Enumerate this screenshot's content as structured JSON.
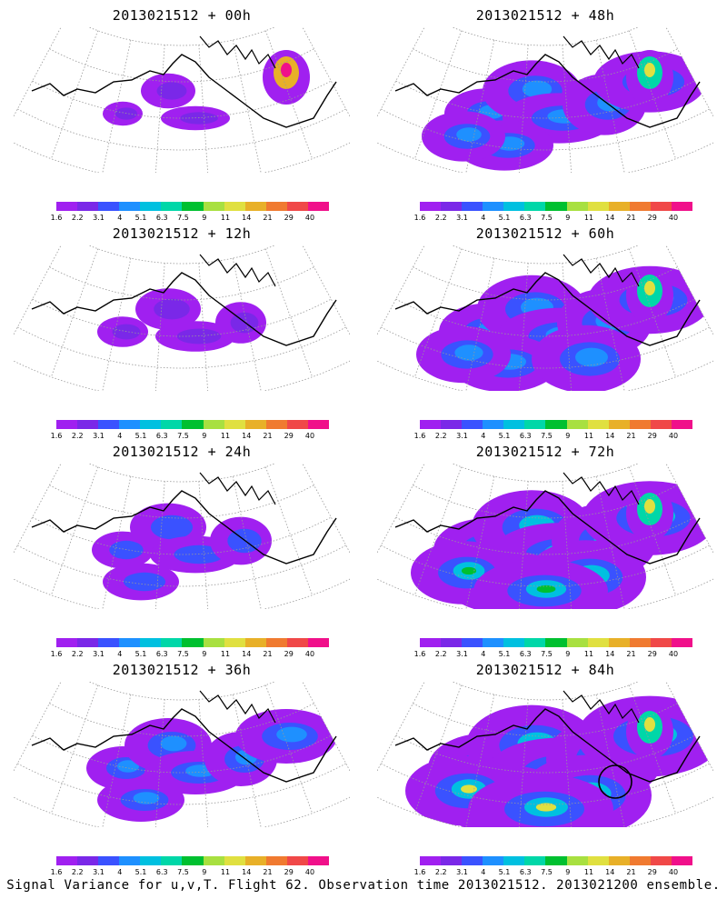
{
  "panels": [
    {
      "title": "2013021512 + 00h",
      "intensity": 0
    },
    {
      "title": "2013021512 + 48h",
      "intensity": 4
    },
    {
      "title": "2013021512 + 12h",
      "intensity": 1
    },
    {
      "title": "2013021512 + 60h",
      "intensity": 5
    },
    {
      "title": "2013021512 + 24h",
      "intensity": 2
    },
    {
      "title": "2013021512 + 72h",
      "intensity": 6
    },
    {
      "title": "2013021512 + 36h",
      "intensity": 3
    },
    {
      "title": "2013021512 + 84h",
      "intensity": 7
    }
  ],
  "colorbar": {
    "labels": [
      "1.6",
      "2.2",
      "3.1",
      "4",
      "5.1",
      "6.3",
      "7.5",
      "9",
      "11",
      "14",
      "21",
      "29",
      "40"
    ],
    "colors": [
      "#a020f0",
      "#7a28e8",
      "#3a52ff",
      "#1e90ff",
      "#00c0e0",
      "#00d7a8",
      "#00c030",
      "#a8e040",
      "#e0e040",
      "#e8b028",
      "#f07a30",
      "#f04848",
      "#f0108a"
    ]
  },
  "caption": "Signal Variance for u,v,T. Flight 62. Observation time 2013021512. 2013021200 ensemble."
}
